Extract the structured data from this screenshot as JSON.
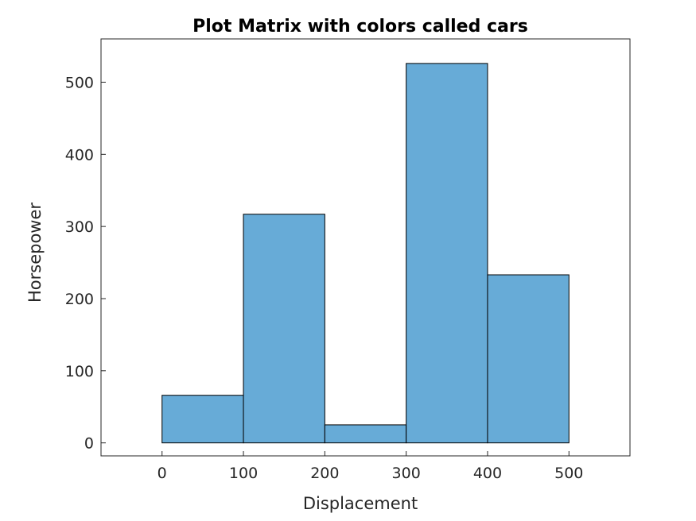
{
  "chart_data": {
    "type": "bar",
    "title": "Plot Matrix with colors called cars",
    "xlabel": "Displacement",
    "ylabel": "Horsepower",
    "bins": [
      {
        "x0": 0,
        "x1": 100,
        "value": 66
      },
      {
        "x0": 100,
        "x1": 200,
        "value": 317
      },
      {
        "x0": 200,
        "x1": 300,
        "value": 25
      },
      {
        "x0": 300,
        "x1": 400,
        "value": 526
      },
      {
        "x0": 400,
        "x1": 500,
        "value": 233
      }
    ],
    "xlim": [
      -75,
      575
    ],
    "ylim": [
      -18,
      560
    ],
    "xticks": [
      0,
      100,
      200,
      300,
      400,
      500
    ],
    "yticks": [
      0,
      100,
      200,
      300,
      400,
      500
    ],
    "grid": false,
    "bar_color": "#67abd7",
    "edge_color": "#000000"
  }
}
